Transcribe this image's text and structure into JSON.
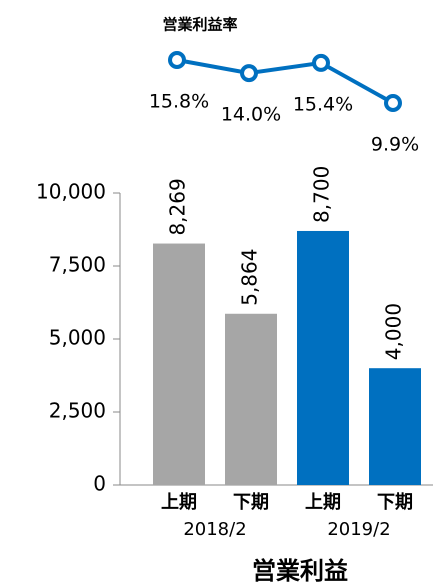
{
  "chart_data": [
    {
      "type": "line",
      "title": "営業利益率",
      "categories": [
        "上期",
        "下期",
        "上期",
        "下期"
      ],
      "values": [
        15.8,
        14.0,
        15.4,
        9.9
      ],
      "value_labels": [
        "15.8%",
        "14.0%",
        "15.4%",
        "9.9%"
      ],
      "color": "#0070c0"
    },
    {
      "type": "bar",
      "x_label": "営業利益",
      "categories": [
        "上期",
        "下期",
        "上期",
        "下期"
      ],
      "groups": [
        "2018/2",
        "2019/2"
      ],
      "values": [
        8269,
        5864,
        8700,
        4000
      ],
      "value_labels": [
        "8,269",
        "5,864",
        "8,700",
        "4,000"
      ],
      "colors": [
        "#a6a6a6",
        "#a6a6a6",
        "#0070c0",
        "#0070c0"
      ],
      "ylim": [
        0,
        10000
      ],
      "yticks": [
        0,
        {
          "value": 2500,
          "label": "2,500"
        },
        {
          "value": 5000,
          "label": "5,000"
        },
        {
          "value": 7500,
          "label": "7,500"
        },
        {
          "value": 10000,
          "label": "10,000"
        }
      ]
    }
  ]
}
